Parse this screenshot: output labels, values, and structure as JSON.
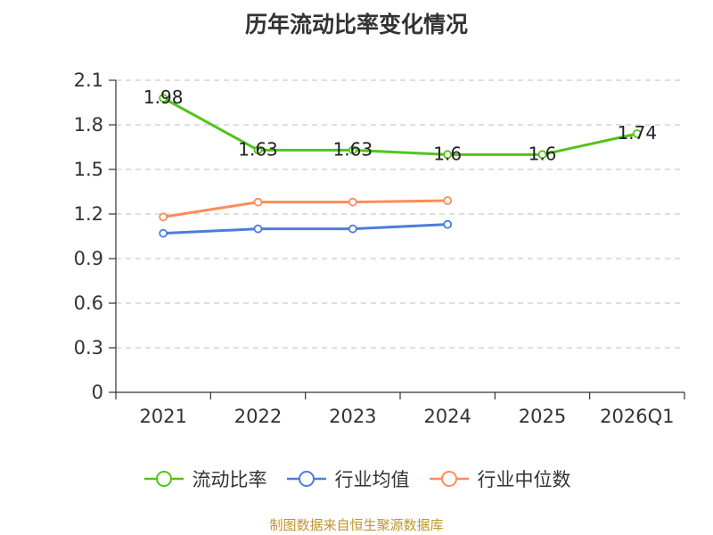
{
  "chart_data": {
    "type": "line",
    "title": "历年流动比率变化情况",
    "categories": [
      "2021",
      "2022",
      "2023",
      "2024",
      "2025",
      "2026Q1"
    ],
    "ylim": [
      0,
      2.1
    ],
    "yticks": [
      0,
      0.3,
      0.6,
      0.9,
      1.2,
      1.5,
      1.8,
      2.1
    ],
    "ytick_labels": [
      "0",
      "0.3",
      "0.6",
      "0.9",
      "1.2",
      "1.5",
      "1.8",
      "2.1"
    ],
    "grid": true,
    "legend_position": "bottom",
    "series": [
      {
        "name": "流动比率",
        "color": "#52c41a",
        "values": [
          1.98,
          1.63,
          1.63,
          1.6,
          1.6,
          1.74
        ],
        "labels": [
          "1.98",
          "1.63",
          "1.63",
          "1.6",
          "1.6",
          "1.74"
        ]
      },
      {
        "name": "行业均值",
        "color": "#4a7fd9",
        "values": [
          1.07,
          1.1,
          1.1,
          1.13,
          null,
          null
        ]
      },
      {
        "name": "行业中位数",
        "color": "#ff8c5a",
        "values": [
          1.18,
          1.28,
          1.28,
          1.29,
          null,
          null
        ]
      }
    ]
  },
  "source_note": "制图数据来自恒生聚源数据库"
}
